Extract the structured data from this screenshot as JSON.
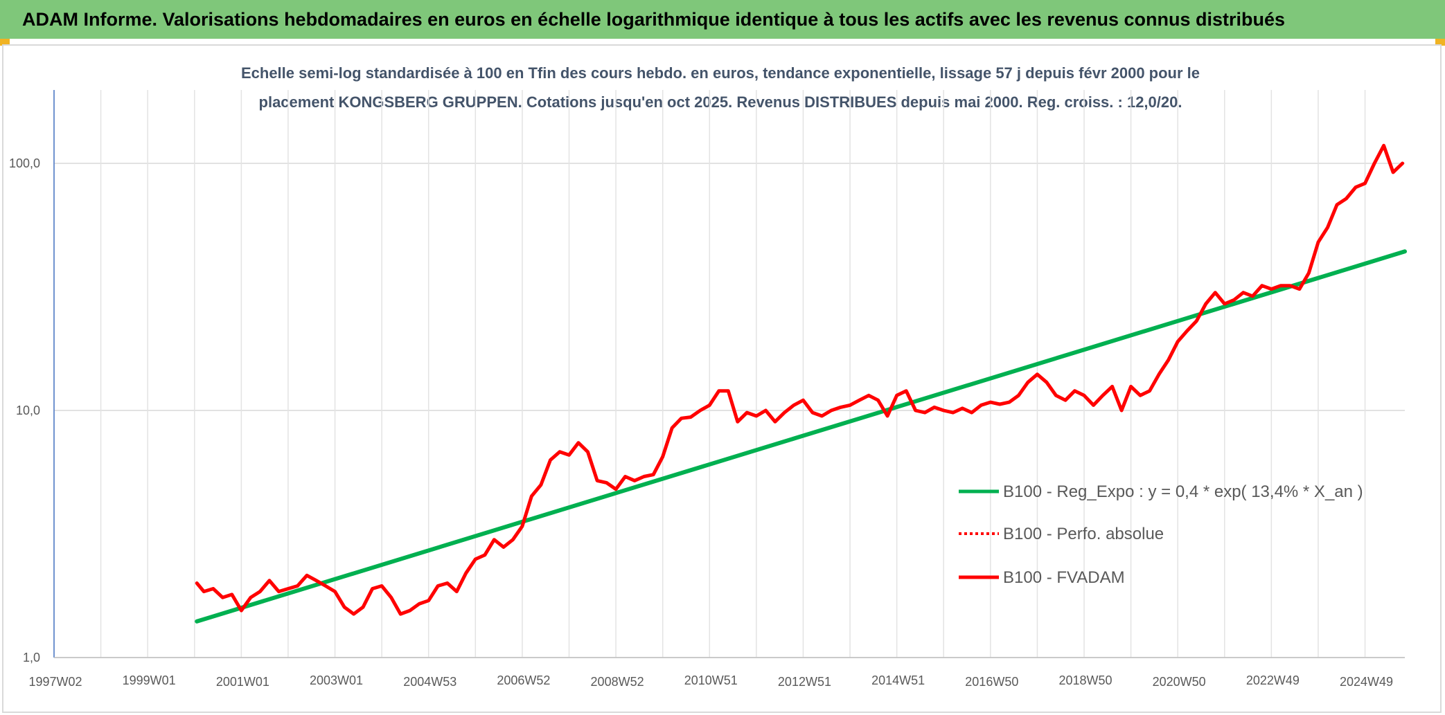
{
  "header": {
    "banner": "ADAM Informe. Valorisations hebdomadaires en euros en échelle logarithmique identique à tous les actifs avec les revenus connus distribués"
  },
  "chart_data": {
    "type": "line",
    "title_line1": "Echelle semi-log standardisée à 100 en Tfin des cours hebdo. en euros, tendance exponentielle, lissage 57 j depuis févr 2000 pour le",
    "title_line2": "placement KONGSBERG GRUPPEN. Cotations jusqu'en oct 2025. Revenus DISTRIBUES depuis mai 2000. Reg. croiss. : 12,0/20.",
    "y_scale": "log",
    "ylim": [
      1,
      200
    ],
    "y_ticks": [
      {
        "value": 1,
        "label": "1,0"
      },
      {
        "value": 10,
        "label": "10,0"
      },
      {
        "value": 100,
        "label": "100,0"
      }
    ],
    "xlim": [
      1997.0,
      2025.85
    ],
    "x_ticks": [
      {
        "value": 1997.0,
        "label": "1997W02"
      },
      {
        "value": 1999.0,
        "label": "1999W01"
      },
      {
        "value": 2001.0,
        "label": "2001W01"
      },
      {
        "value": 2003.0,
        "label": "2003W01"
      },
      {
        "value": 2005.0,
        "label": "2004W53"
      },
      {
        "value": 2007.0,
        "label": "2006W52"
      },
      {
        "value": 2009.0,
        "label": "2008W52"
      },
      {
        "value": 2011.0,
        "label": "2010W51"
      },
      {
        "value": 2013.0,
        "label": "2012W51"
      },
      {
        "value": 2015.0,
        "label": "2014W51"
      },
      {
        "value": 2017.0,
        "label": "2016W50"
      },
      {
        "value": 2019.0,
        "label": "2018W50"
      },
      {
        "value": 2021.0,
        "label": "2020W50"
      },
      {
        "value": 2023.0,
        "label": "2022W49"
      },
      {
        "value": 2025.0,
        "label": "2024W49"
      }
    ],
    "legend_position": "right",
    "series": [
      {
        "name": "B100 - Reg_Expo : y = 0,4 * exp( 13,4% *  X_an )",
        "color": "#00b050",
        "style": "solid",
        "x": [
          2000.05,
          2025.85
        ],
        "y": [
          1.4,
          44
        ]
      },
      {
        "name": "B100 - Perfo. absolue",
        "color": "#ff0000",
        "style": "dotted",
        "x": [],
        "y": []
      },
      {
        "name": "B100 - FVADAM",
        "color": "#ff0000",
        "style": "solid",
        "x": [
          2000.05,
          2000.2,
          2000.4,
          2000.6,
          2000.8,
          2001.0,
          2001.2,
          2001.4,
          2001.6,
          2001.8,
          2002.0,
          2002.2,
          2002.4,
          2002.6,
          2002.8,
          2003.0,
          2003.2,
          2003.4,
          2003.6,
          2003.8,
          2004.0,
          2004.2,
          2004.4,
          2004.6,
          2004.8,
          2005.0,
          2005.2,
          2005.4,
          2005.6,
          2005.8,
          2006.0,
          2006.2,
          2006.4,
          2006.6,
          2006.8,
          2007.0,
          2007.2,
          2007.4,
          2007.6,
          2007.8,
          2008.0,
          2008.2,
          2008.4,
          2008.6,
          2008.8,
          2009.0,
          2009.2,
          2009.4,
          2009.6,
          2009.8,
          2010.0,
          2010.2,
          2010.4,
          2010.6,
          2010.8,
          2011.0,
          2011.2,
          2011.4,
          2011.6,
          2011.8,
          2012.0,
          2012.2,
          2012.4,
          2012.6,
          2012.8,
          2013.0,
          2013.2,
          2013.4,
          2013.6,
          2013.8,
          2014.0,
          2014.2,
          2014.4,
          2014.6,
          2014.8,
          2015.0,
          2015.2,
          2015.4,
          2015.6,
          2015.8,
          2016.0,
          2016.2,
          2016.4,
          2016.6,
          2016.8,
          2017.0,
          2017.2,
          2017.4,
          2017.6,
          2017.8,
          2018.0,
          2018.2,
          2018.4,
          2018.6,
          2018.8,
          2019.0,
          2019.2,
          2019.4,
          2019.6,
          2019.8,
          2020.0,
          2020.2,
          2020.4,
          2020.6,
          2020.8,
          2021.0,
          2021.2,
          2021.4,
          2021.6,
          2021.8,
          2022.0,
          2022.2,
          2022.4,
          2022.6,
          2022.8,
          2023.0,
          2023.2,
          2023.4,
          2023.6,
          2023.8,
          2024.0,
          2024.2,
          2024.4,
          2024.6,
          2024.8,
          2025.0,
          2025.2,
          2025.4,
          2025.6,
          2025.8
        ],
        "y": [
          2.0,
          1.85,
          1.9,
          1.75,
          1.8,
          1.55,
          1.75,
          1.85,
          2.05,
          1.85,
          1.9,
          1.95,
          2.15,
          2.05,
          1.95,
          1.85,
          1.6,
          1.5,
          1.6,
          1.9,
          1.95,
          1.75,
          1.5,
          1.55,
          1.65,
          1.7,
          1.95,
          2.0,
          1.85,
          2.2,
          2.5,
          2.6,
          3.0,
          2.8,
          3.0,
          3.4,
          4.5,
          5.0,
          6.3,
          6.8,
          6.6,
          7.4,
          6.8,
          5.2,
          5.1,
          4.8,
          5.4,
          5.2,
          5.4,
          5.5,
          6.5,
          8.5,
          9.3,
          9.4,
          10.0,
          10.5,
          12.0,
          12.0,
          9.0,
          9.8,
          9.5,
          10.0,
          9.0,
          9.8,
          10.5,
          11.0,
          9.8,
          9.5,
          10.0,
          10.3,
          10.5,
          11.0,
          11.5,
          11.0,
          9.5,
          11.5,
          12.0,
          10.0,
          9.8,
          10.3,
          10.0,
          9.8,
          10.2,
          9.8,
          10.5,
          10.8,
          10.6,
          10.8,
          11.5,
          13.0,
          14.0,
          13.0,
          11.5,
          11.0,
          12.0,
          11.5,
          10.5,
          11.5,
          12.5,
          10.0,
          12.5,
          11.5,
          12.0,
          14.0,
          16.0,
          19.0,
          21.0,
          23.0,
          27.0,
          30.0,
          27.0,
          28.0,
          30.0,
          29.0,
          32.0,
          31.0,
          32.0,
          32.0,
          31.0,
          36.0,
          48.0,
          55.0,
          68.0,
          72.0,
          80.0,
          83.0,
          100.0,
          118.0,
          92.0,
          100.0
        ]
      }
    ]
  }
}
